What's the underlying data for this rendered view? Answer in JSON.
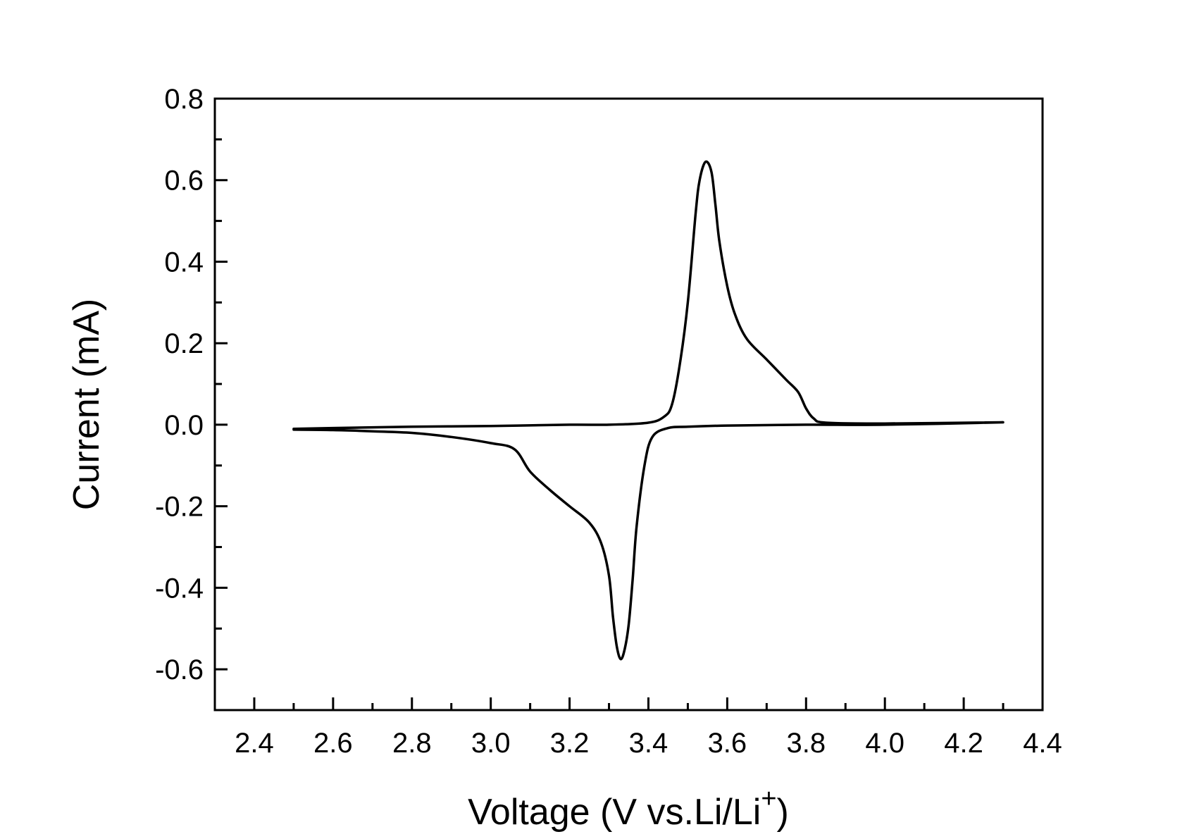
{
  "chart_data": {
    "type": "line",
    "title": "",
    "xlabel": "Voltage (V vs.Li/Li",
    "xlabel_sup": "+",
    "xlabel_tail": ")",
    "ylabel": "Current (mA)",
    "xlim": [
      2.3,
      4.4
    ],
    "ylim": [
      -0.7,
      0.8
    ],
    "xticks": [
      2.4,
      2.6,
      2.8,
      3.0,
      3.2,
      3.4,
      3.6,
      3.8,
      4.0,
      4.2,
      4.4
    ],
    "xtick_labels": [
      "2.4",
      "2.6",
      "2.8",
      "3.0",
      "3.2",
      "3.4",
      "3.6",
      "3.8",
      "4.0",
      "4.2",
      "4.4"
    ],
    "yticks": [
      0.8,
      0.6,
      0.4,
      0.2,
      0.0,
      -0.2,
      -0.4,
      -0.6
    ],
    "ytick_labels": [
      "0.8",
      "0.6",
      "0.4",
      "0.2",
      "0.0",
      "-0.2",
      "-0.4",
      "-0.6"
    ],
    "grid": false,
    "line_color": "#000000",
    "series": [
      {
        "x": [
          2.5,
          2.6,
          2.8,
          3.0,
          3.2,
          3.3,
          3.4,
          3.44,
          3.46,
          3.48,
          3.5,
          3.52,
          3.53,
          3.545,
          3.56,
          3.57,
          3.58,
          3.6,
          3.62,
          3.65,
          3.7,
          3.75,
          3.78,
          3.8,
          3.82,
          3.85,
          4.0,
          4.3,
          4.0,
          3.8,
          3.6,
          3.5,
          3.45,
          3.41,
          3.39,
          3.37,
          3.36,
          3.35,
          3.34,
          3.33,
          3.32,
          3.31,
          3.3,
          3.28,
          3.25,
          3.2,
          3.15,
          3.1,
          3.06,
          3.0,
          2.9,
          2.8,
          2.7,
          2.6,
          2.5
        ],
        "y": [
          -0.01,
          -0.008,
          -0.005,
          -0.003,
          0.0,
          0.0,
          0.005,
          0.02,
          0.05,
          0.15,
          0.3,
          0.52,
          0.6,
          0.645,
          0.62,
          0.54,
          0.45,
          0.34,
          0.27,
          0.21,
          0.16,
          0.11,
          0.08,
          0.04,
          0.015,
          0.005,
          0.003,
          0.006,
          0.0,
          0.0,
          -0.002,
          -0.005,
          -0.008,
          -0.03,
          -0.1,
          -0.25,
          -0.38,
          -0.49,
          -0.55,
          -0.575,
          -0.545,
          -0.47,
          -0.37,
          -0.29,
          -0.24,
          -0.2,
          -0.16,
          -0.115,
          -0.06,
          -0.045,
          -0.03,
          -0.02,
          -0.016,
          -0.013,
          -0.012
        ]
      }
    ]
  }
}
